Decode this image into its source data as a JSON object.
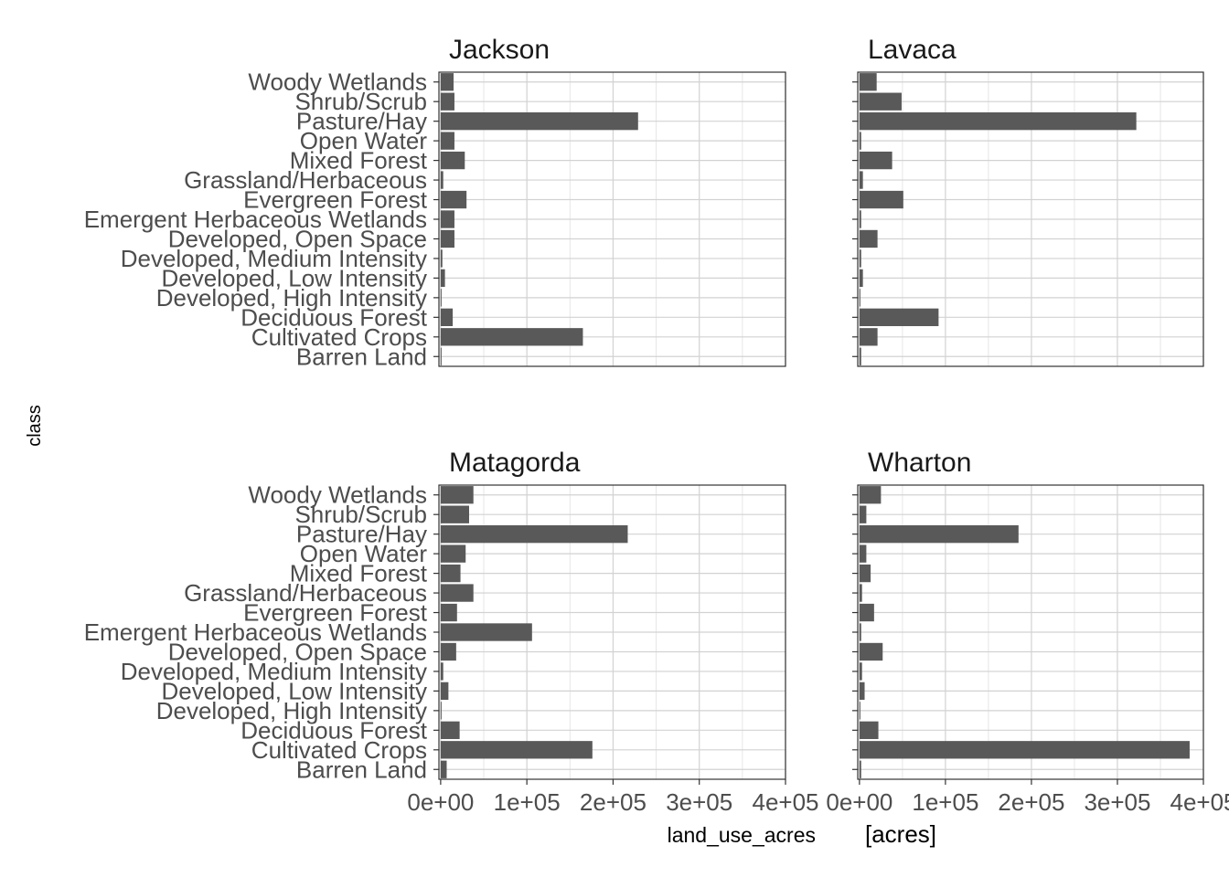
{
  "xlabel": "land_use_acres",
  "xlabel_unit": "[acres]",
  "ylabel": "class",
  "chart_data": {
    "type": "bar",
    "orientation": "horizontal",
    "facet_layout": "2x2",
    "xlabel": "land_use_acres [acres]",
    "ylabel": "class",
    "xlim": [
      -2000,
      400000
    ],
    "x_ticks": [
      0,
      100000,
      200000,
      300000,
      400000
    ],
    "x_tick_labels": [
      "0e+00",
      "1e+05",
      "2e+05",
      "3e+05",
      "4e+05"
    ],
    "grid": true,
    "bar_color": "#595959",
    "categories": [
      "Woody Wetlands",
      "Shrub/Scrub",
      "Pasture/Hay",
      "Open Water",
      "Mixed Forest",
      "Grassland/Herbaceous",
      "Evergreen Forest",
      "Emergent Herbaceous Wetlands",
      "Developed, Open Space",
      "Developed, Medium Intensity",
      "Developed, Low Intensity",
      "Developed, High Intensity",
      "Deciduous Forest",
      "Cultivated Crops",
      "Barren Land"
    ],
    "facets": [
      {
        "name": "Jackson",
        "values": [
          15000,
          16000,
          229000,
          16000,
          28000,
          3000,
          30000,
          16000,
          16000,
          2000,
          5000,
          500,
          14000,
          165000,
          1000
        ]
      },
      {
        "name": "Lavaca",
        "values": [
          20000,
          49000,
          322000,
          2000,
          38000,
          4000,
          51000,
          2000,
          21000,
          2000,
          4000,
          500,
          92000,
          21000,
          2000
        ]
      },
      {
        "name": "Matagorda",
        "values": [
          38000,
          33000,
          217000,
          29000,
          23000,
          38000,
          19000,
          106000,
          18000,
          3000,
          9000,
          1000,
          22000,
          176000,
          7000
        ]
      },
      {
        "name": "Wharton",
        "values": [
          25000,
          8000,
          185000,
          8000,
          13000,
          3000,
          17000,
          2000,
          27000,
          3000,
          6000,
          1000,
          22000,
          384000,
          2000
        ]
      }
    ]
  }
}
